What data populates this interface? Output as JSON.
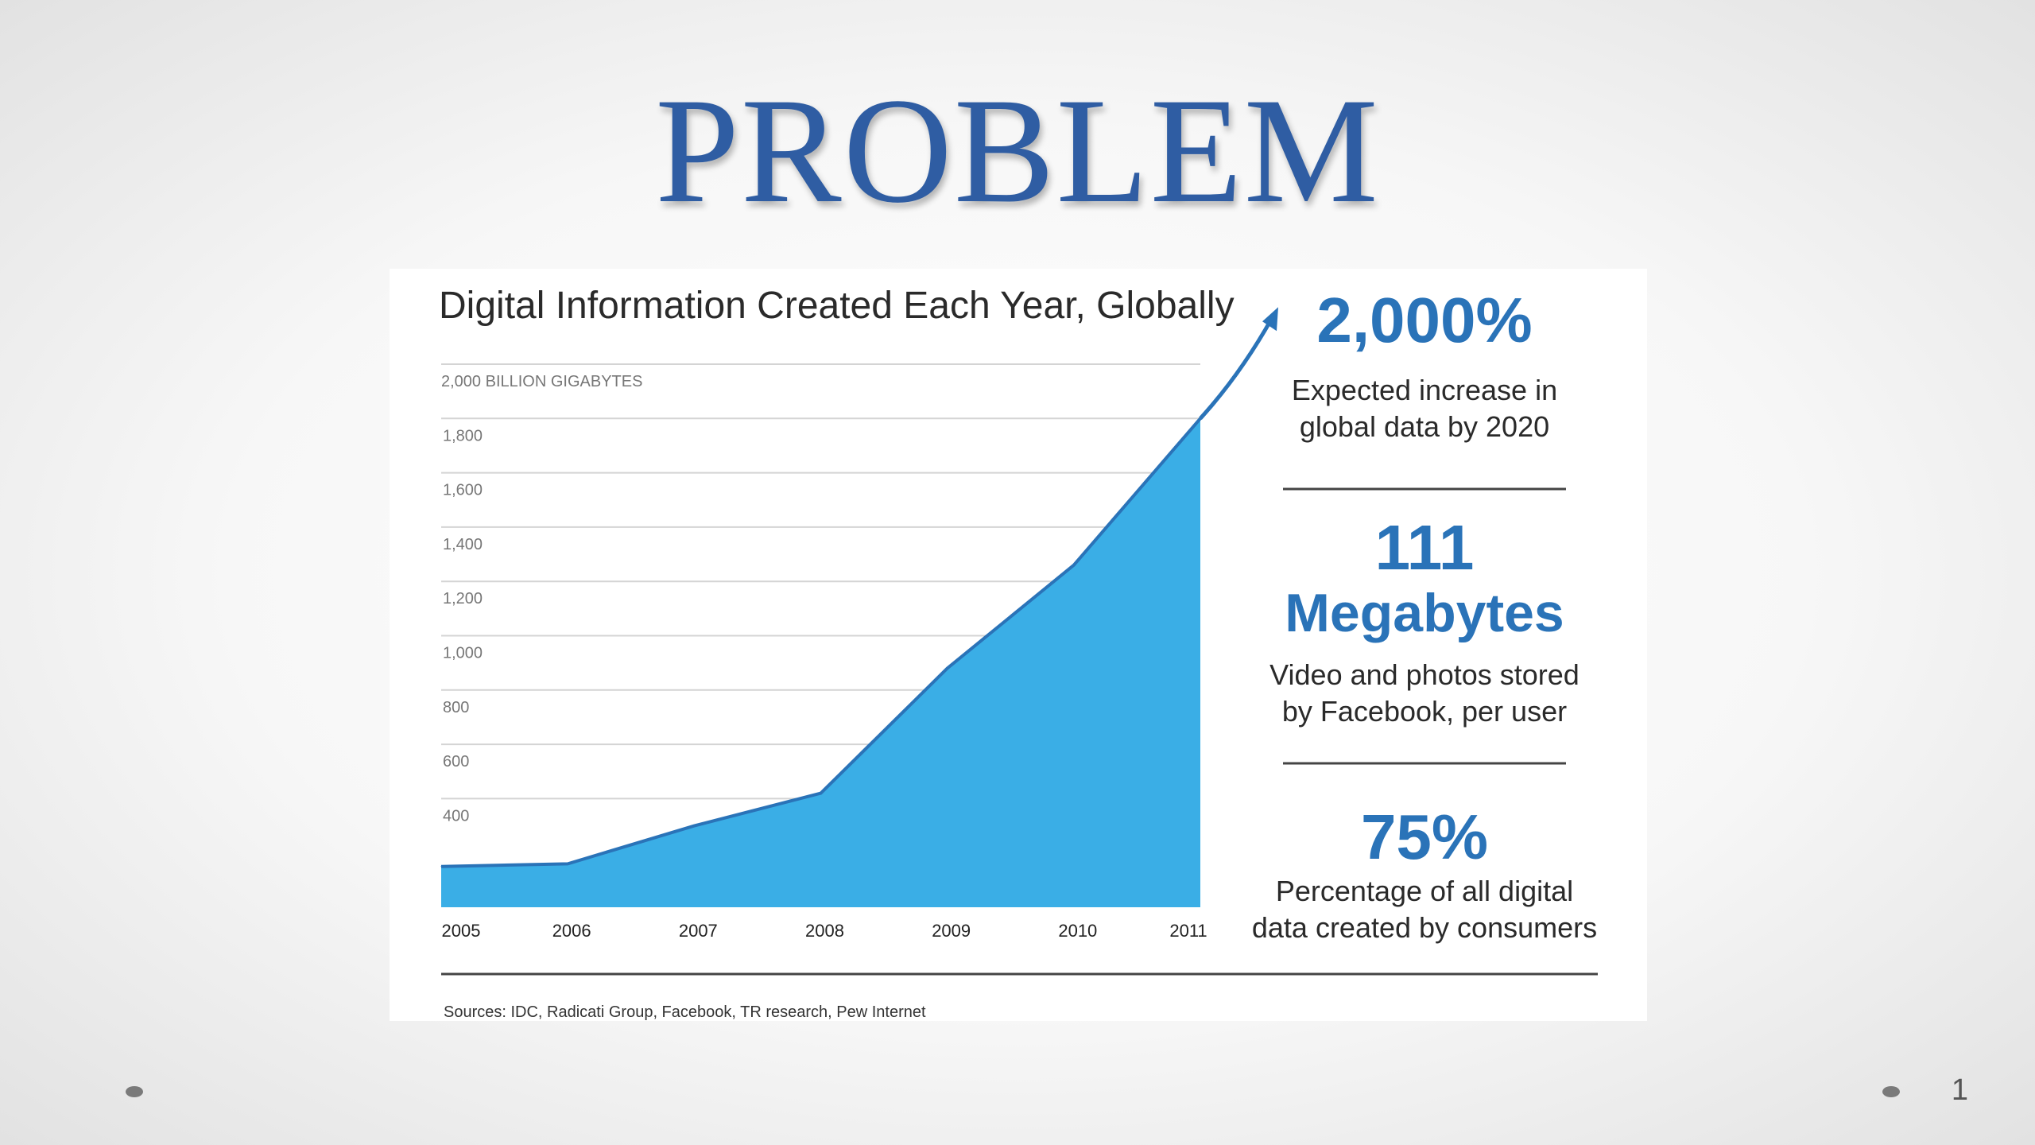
{
  "slide": {
    "title": "PROBLEM",
    "page_number": "1"
  },
  "chart_data": {
    "type": "area",
    "title": "Digital Information Created Each Year, Globally",
    "unit_label": "2,000 BILLION GIGABYTES",
    "categories": [
      "2005",
      "2006",
      "2007",
      "2008",
      "2009",
      "2010",
      "2011"
    ],
    "values": [
      150,
      160,
      300,
      420,
      880,
      1260,
      1800
    ],
    "y_ticks": [
      "400",
      "600",
      "800",
      "1,000",
      "1,200",
      "1,400",
      "1,600",
      "1,800"
    ],
    "y_tick_values": [
      400,
      600,
      800,
      1000,
      1200,
      1400,
      1600,
      1800
    ],
    "ylim": [
      0,
      2000
    ],
    "xlabel": "",
    "ylabel": "",
    "grid": true,
    "fill_color": "#3aaee6",
    "line_color": "#2a73b8",
    "trend_arrow": true,
    "source": "Sources: IDC, Radicati Group, Facebook, TR research, Pew Internet"
  },
  "stats": [
    {
      "value": "2,000%",
      "desc_line1": "Expected increase in",
      "desc_line2": "global data by 2020"
    },
    {
      "value": "111",
      "value_line2": "Megabytes",
      "desc_line1": "Video and photos stored",
      "desc_line2": "by Facebook, per user"
    },
    {
      "value": "75%",
      "desc_line1": "Percentage of all digital",
      "desc_line2": "data created by consumers"
    }
  ],
  "colors": {
    "title": "#2f5da3",
    "accent": "#2a73b8"
  }
}
